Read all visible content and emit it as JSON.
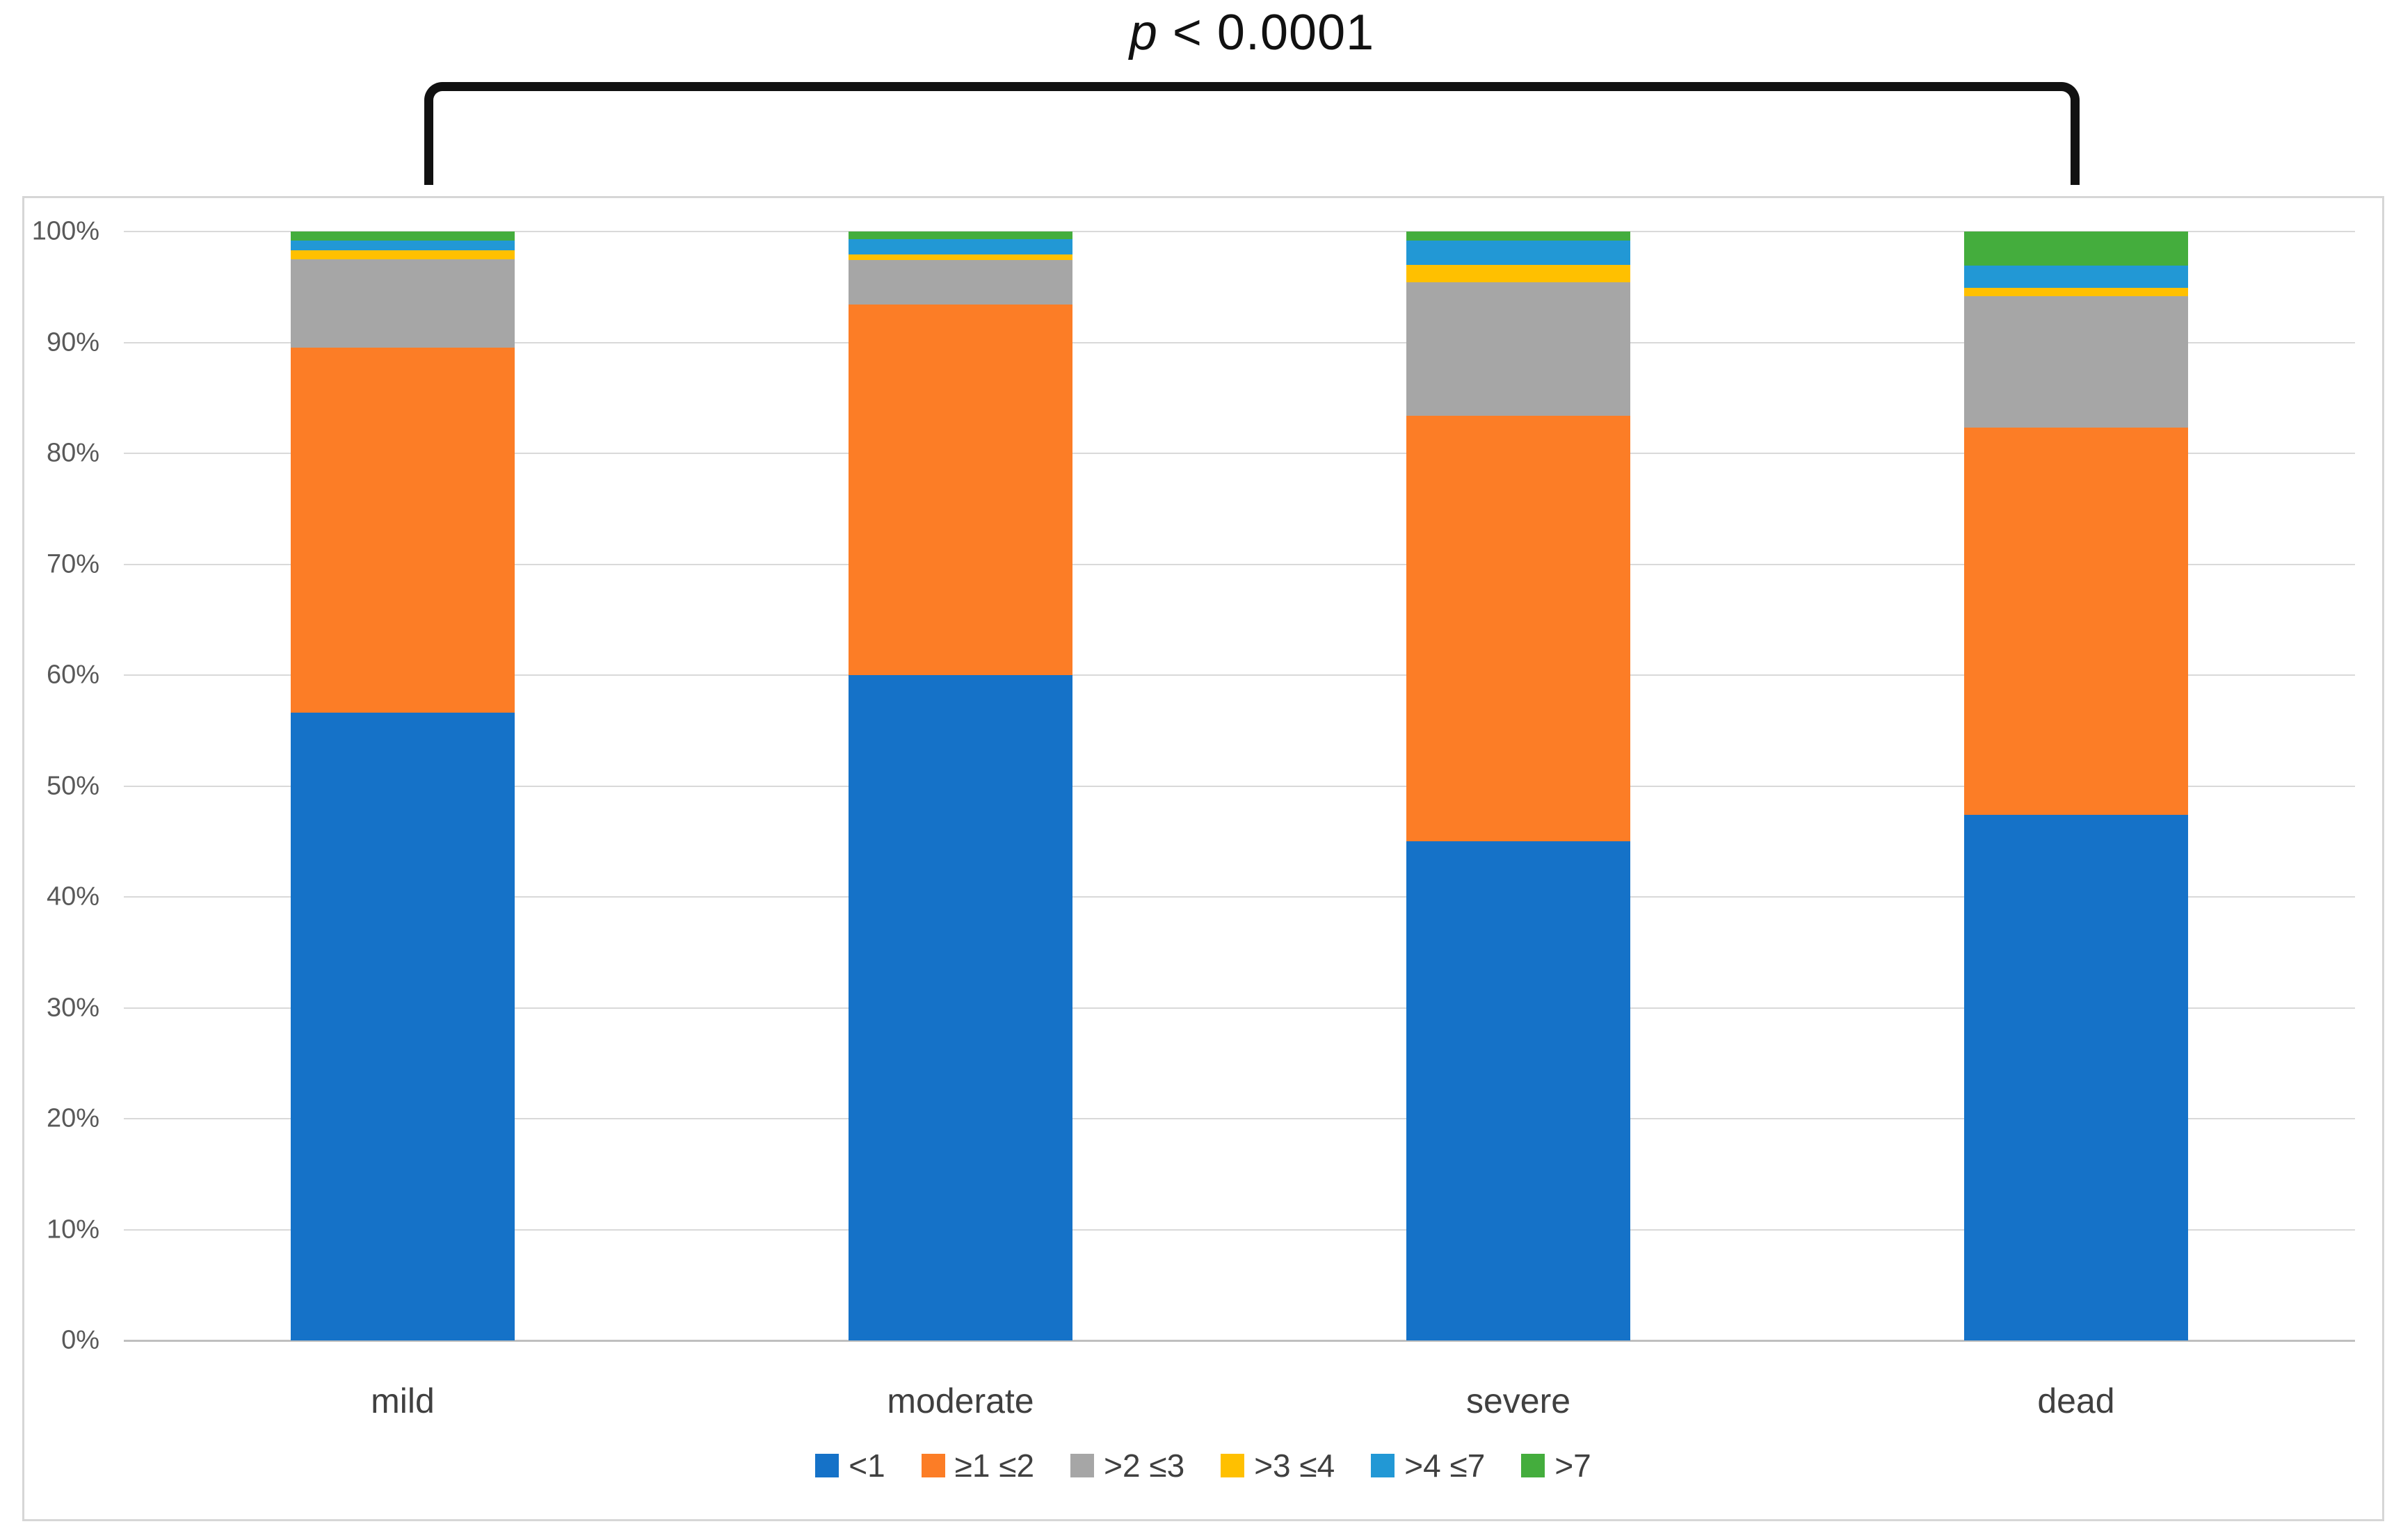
{
  "annotation": {
    "p_symbol": "p",
    "p_rest": " < 0.0001"
  },
  "chart_data": {
    "type": "bar",
    "stacked": true,
    "percent_stacked": true,
    "title": "",
    "xlabel": "",
    "ylabel": "",
    "categories": [
      "mild",
      "moderate",
      "severe",
      "dead"
    ],
    "series": [
      {
        "name": "<1",
        "color": "#1572c8",
        "values": [
          56.6,
          60.0,
          45.0,
          47.4
        ]
      },
      {
        "name": "≥1 ≤2",
        "color": "#fc7d26",
        "values": [
          32.9,
          33.4,
          38.4,
          34.9
        ]
      },
      {
        "name": ">2 ≤3",
        "color": "#a6a6a6",
        "values": [
          8.0,
          4.0,
          12.0,
          11.9
        ]
      },
      {
        "name": ">3 ≤4",
        "color": "#ffc000",
        "values": [
          0.8,
          0.5,
          1.6,
          0.7
        ]
      },
      {
        "name": ">4 ≤7",
        "color": "#2298d5",
        "values": [
          0.9,
          1.4,
          2.2,
          2.0
        ]
      },
      {
        "name": ">7",
        "color": "#44ad3d",
        "values": [
          0.8,
          0.7,
          0.8,
          3.1
        ]
      }
    ],
    "y_axis": {
      "min": 0,
      "max": 100,
      "step": 10,
      "tick_suffix": "%",
      "tick_labels": [
        "0%",
        "10%",
        "20%",
        "30%",
        "40%",
        "50%",
        "60%",
        "70%",
        "80%",
        "90%",
        "100%"
      ]
    },
    "grid": true,
    "legend_position": "bottom",
    "significance_bracket": {
      "from_category": "mild",
      "to_category": "dead",
      "label": "p < 0.0001"
    }
  },
  "style_colors": {
    "gridline": "#d9d9d9",
    "axis_line": "#bfbfbf",
    "frame_border": "#d6d6d6",
    "tick_text": "#595959",
    "category_text": "#404040",
    "annotation_text": "#111111"
  }
}
